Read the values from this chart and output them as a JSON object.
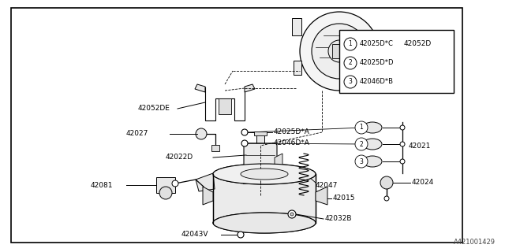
{
  "bg_color": "#ffffff",
  "border_color": "#000000",
  "line_color": "#000000",
  "text_color": "#000000",
  "watermark": "A421001429",
  "legend_items": [
    {
      "num": "1",
      "code": "42025D*C"
    },
    {
      "num": "2",
      "code": "42025D*D"
    },
    {
      "num": "3",
      "code": "42046D*B"
    }
  ],
  "fig_w": 6.4,
  "fig_h": 3.2,
  "dpi": 100
}
